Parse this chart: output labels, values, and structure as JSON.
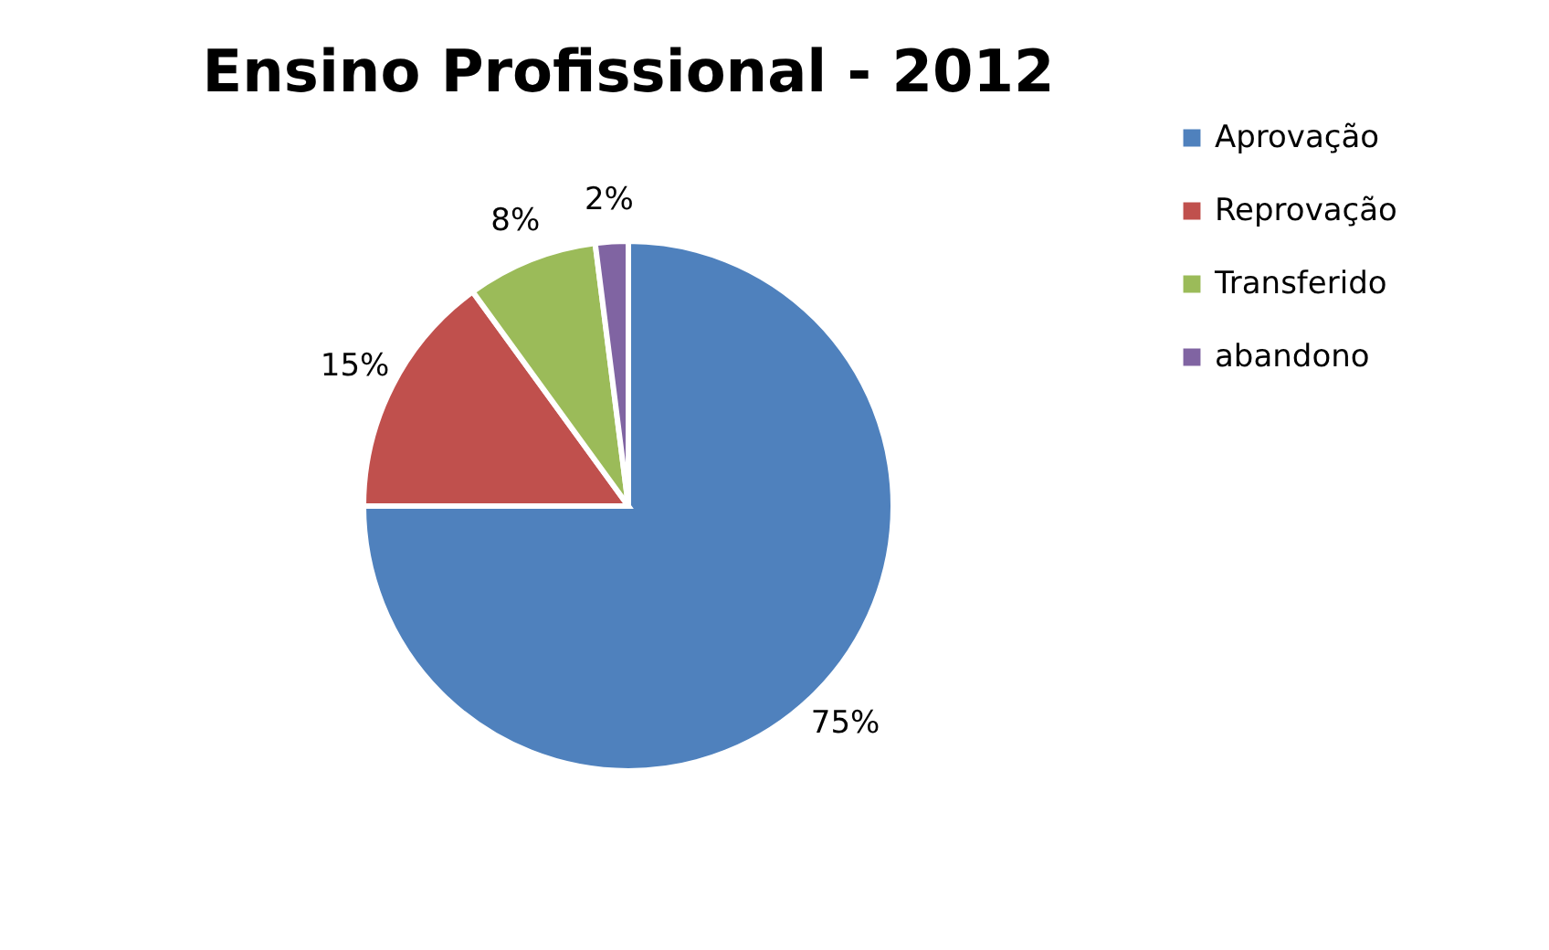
{
  "chart_data": {
    "type": "pie",
    "title": "Ensino Profissional - 2012",
    "categories": [
      "Aprovação",
      "Reprovação",
      "Transferido",
      "abandono"
    ],
    "values": [
      75,
      15,
      8,
      2
    ],
    "colors": [
      "#4f81bd",
      "#c0504d",
      "#9bbb59",
      "#8064a2"
    ],
    "value_labels": [
      "75%",
      "15%",
      "8%",
      "2%"
    ],
    "legend": "right"
  }
}
